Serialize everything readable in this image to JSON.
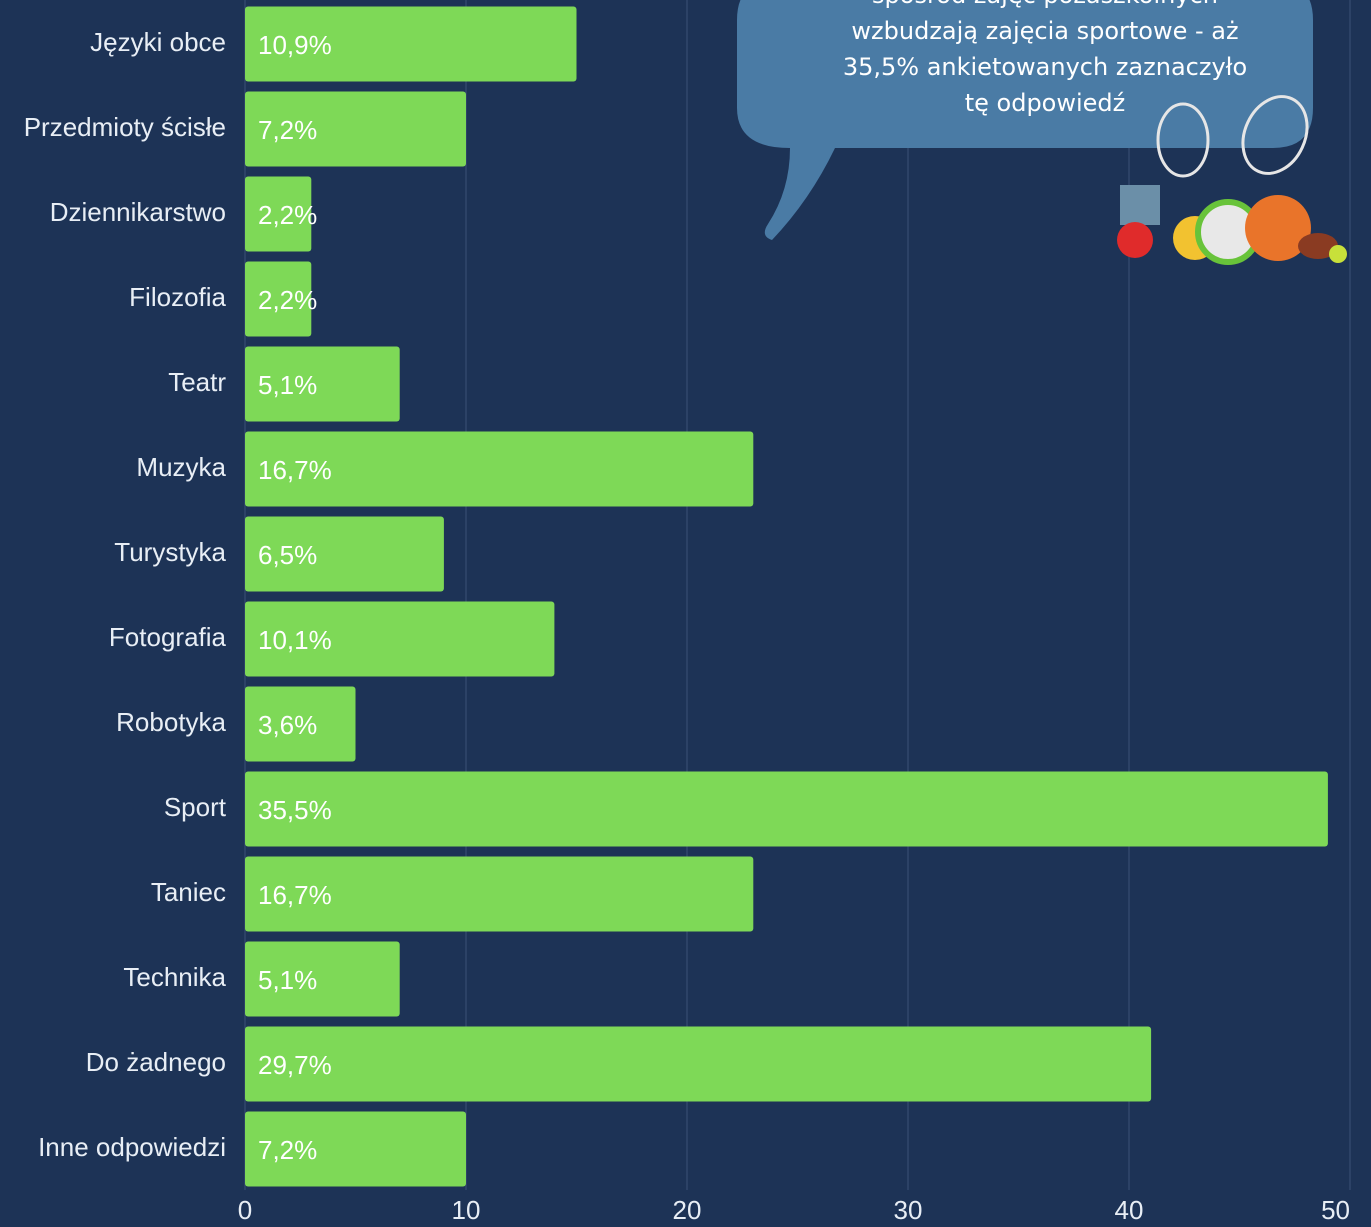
{
  "chart_data": {
    "type": "bar",
    "orientation": "horizontal",
    "categories": [
      "Języki obce",
      "Przedmioty ścisłe",
      "Dziennikarstwo",
      "Filozofia",
      "Teatr",
      "Muzyka",
      "Turystyka",
      "Fotografia",
      "Robotyka",
      "Sport",
      "Taniec",
      "Technika",
      "Do żadnego",
      "Inne odpowiedzi"
    ],
    "values": [
      15,
      10,
      3,
      3,
      7,
      23,
      9,
      14,
      5,
      49,
      23,
      7,
      41,
      10
    ],
    "color": "#7ed957",
    "shares": {
      "values": [
        10.9,
        7.2,
        2.2,
        2.2,
        5.1,
        16.7,
        6.5,
        10.1,
        3.6,
        35.5,
        16.7,
        5.1,
        29.7,
        7.2
      ],
      "value_labels": [
        "10,9%",
        "7,2%",
        "2,2%",
        "2,2%",
        "5,1%",
        "16,7%",
        "6,5%",
        "10,1%",
        "3,6%",
        "35,5%",
        "16,7%",
        "5,1%",
        "29,7%",
        "7,2%"
      ]
    },
    "xlim": [
      0,
      50
    ],
    "xticks": [
      0,
      10,
      20,
      30,
      40,
      50
    ],
    "grid": true,
    "annotation": [
      "spośród zajęć pozaszkolnych",
      "wzbudzają zajęcia sportowe - aż",
      "35,5% ankietowanych zaznaczyło",
      "tę odpowiedź"
    ]
  }
}
